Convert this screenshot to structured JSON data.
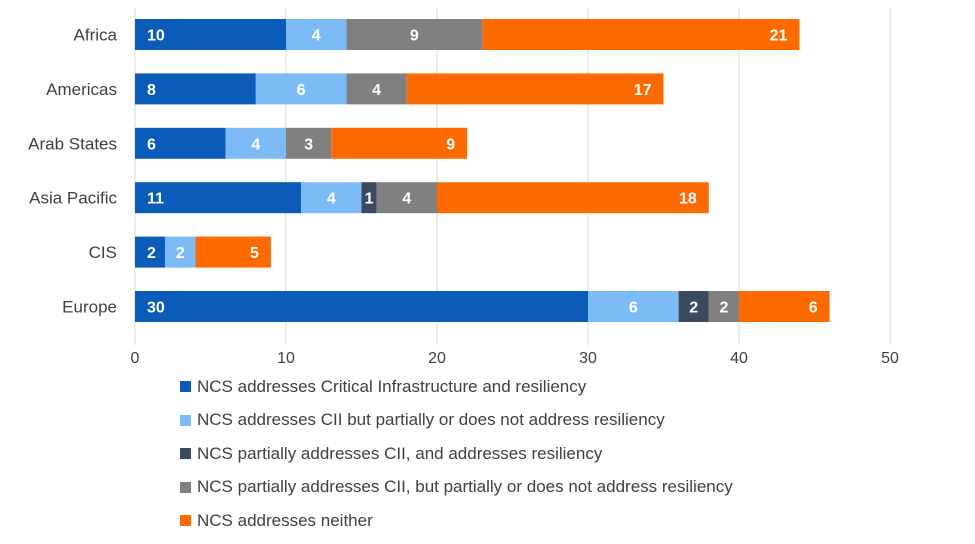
{
  "chart_data": {
    "type": "bar",
    "orientation": "horizontal",
    "stacked": true,
    "categories": [
      "Africa",
      "Americas",
      "Arab States",
      "Asia Pacific",
      "CIS",
      "Europe"
    ],
    "series": [
      {
        "name": "NCS addresses Critical Infrastructure and resiliency",
        "color": "#0B5CB8",
        "values": [
          10,
          8,
          6,
          11,
          2,
          30
        ]
      },
      {
        "name": "NCS addresses CII but partially or does not address resiliency",
        "color": "#7DBBF7",
        "values": [
          4,
          6,
          4,
          4,
          2,
          6
        ]
      },
      {
        "name": "NCS partially addresses CII, and addresses resiliency",
        "color": "#3C4A5F",
        "values": [
          0,
          0,
          0,
          1,
          0,
          2
        ]
      },
      {
        "name": "NCS partially addresses CII, but partially or does not address resiliency",
        "color": "#808080",
        "values": [
          9,
          4,
          3,
          4,
          0,
          2
        ]
      },
      {
        "name": "NCS addresses neither",
        "color": "#FF6A00",
        "values": [
          21,
          17,
          9,
          18,
          5,
          6
        ]
      }
    ],
    "xlim": [
      0,
      50
    ],
    "xticks": [
      0,
      10,
      20,
      30,
      40,
      50
    ],
    "grid": true,
    "legend_position": "bottom"
  }
}
